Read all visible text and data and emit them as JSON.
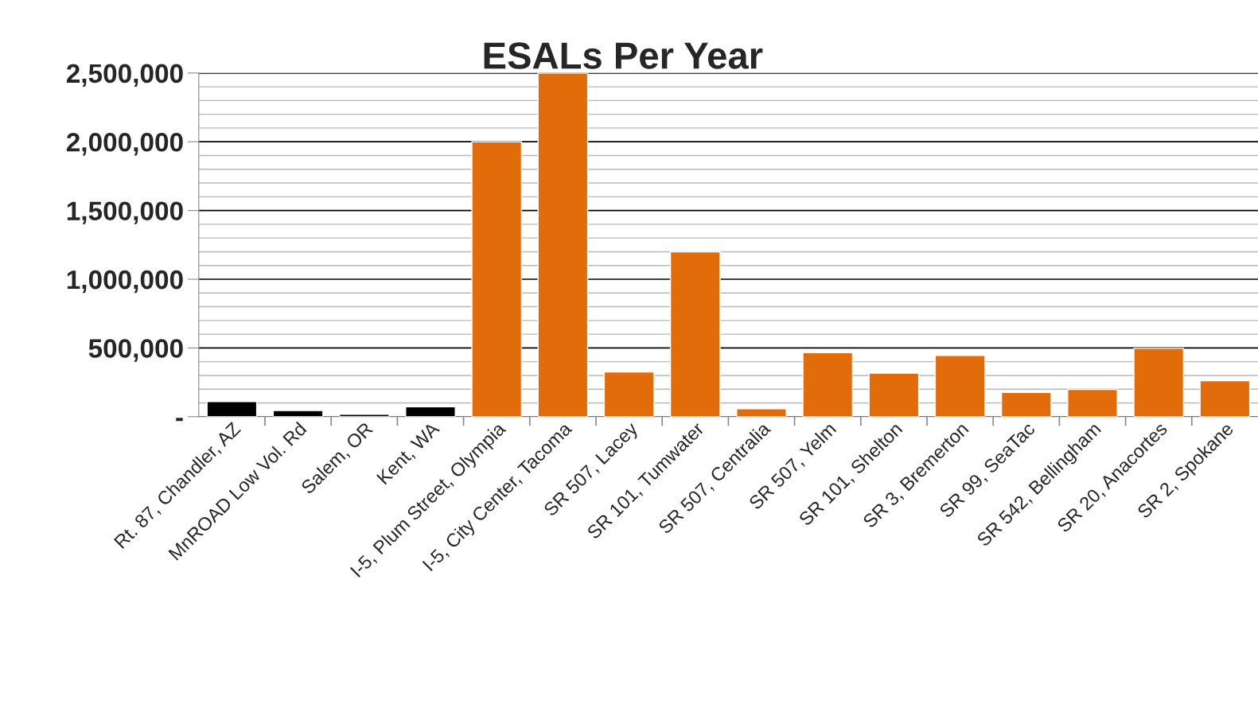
{
  "chart_data": {
    "type": "bar",
    "title": "ESALs Per Year",
    "categories": [
      "Rt. 87, Chandler, AZ",
      "MnROAD Low Vol. Rd",
      "Salem, OR",
      "Kent, WA",
      "I-5, Plum Street, Olympia",
      "I-5, City Center, Tacoma",
      "SR 507, Lacey",
      "SR 101, Tumwater",
      "SR 507, Centralia",
      "SR 507, Yelm",
      "SR 101, Shelton",
      "SR 3, Bremerton",
      "SR 99, SeaTac",
      "SR 542, Bellingham",
      "SR 20, Anacortes",
      "SR 2, Spokane"
    ],
    "values": [
      110000,
      45000,
      18000,
      73000,
      2000000,
      2500000,
      325000,
      1200000,
      58000,
      466000,
      317000,
      445000,
      177000,
      198000,
      497000,
      262000
    ],
    "colors": [
      "#000000",
      "#000000",
      "#000000",
      "#000000",
      "#e36c0a",
      "#e36c0a",
      "#e36c0a",
      "#e36c0a",
      "#e36c0a",
      "#e36c0a",
      "#e36c0a",
      "#e36c0a",
      "#e36c0a",
      "#e36c0a",
      "#e36c0a",
      "#e36c0a"
    ],
    "ylim": [
      0,
      2500000
    ],
    "yticks": [
      {
        "value": 0,
        "label": "-"
      },
      {
        "value": 500000,
        "label": "500,000"
      },
      {
        "value": 1000000,
        "label": "1,000,000"
      },
      {
        "value": 1500000,
        "label": "1,500,000"
      },
      {
        "value": 2000000,
        "label": "2,000,000"
      },
      {
        "value": 2500000,
        "label": "2,500,000"
      }
    ],
    "grid": "y",
    "legend": false
  }
}
